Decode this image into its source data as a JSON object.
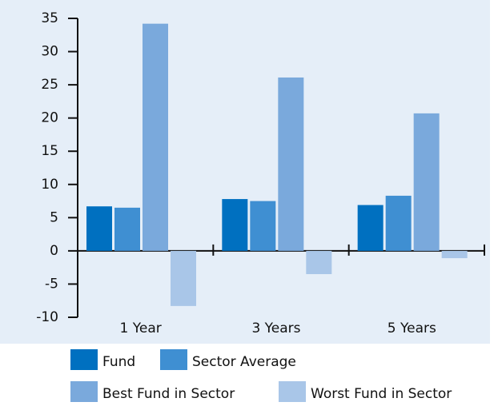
{
  "chart_data": {
    "type": "bar",
    "categories": [
      "1 Year",
      "3 Years",
      "5 Years"
    ],
    "series": [
      {
        "name": "Fund",
        "color": "#0070c0",
        "values": [
          6.7,
          7.8,
          6.9
        ]
      },
      {
        "name": "Sector Average",
        "color": "#3f8fd2",
        "values": [
          6.5,
          7.5,
          8.3
        ]
      },
      {
        "name": "Best Fund in Sector",
        "color": "#7aa9dc",
        "values": [
          34.2,
          26.1,
          20.7
        ]
      },
      {
        "name": "Worst Fund in Sector",
        "color": "#a9c6e8",
        "values": [
          -8.3,
          -3.5,
          -1.1
        ]
      }
    ],
    "ylim": [
      -10,
      35
    ],
    "yticks": [
      -10,
      -5,
      0,
      5,
      10,
      15,
      20,
      25,
      30,
      35
    ]
  }
}
